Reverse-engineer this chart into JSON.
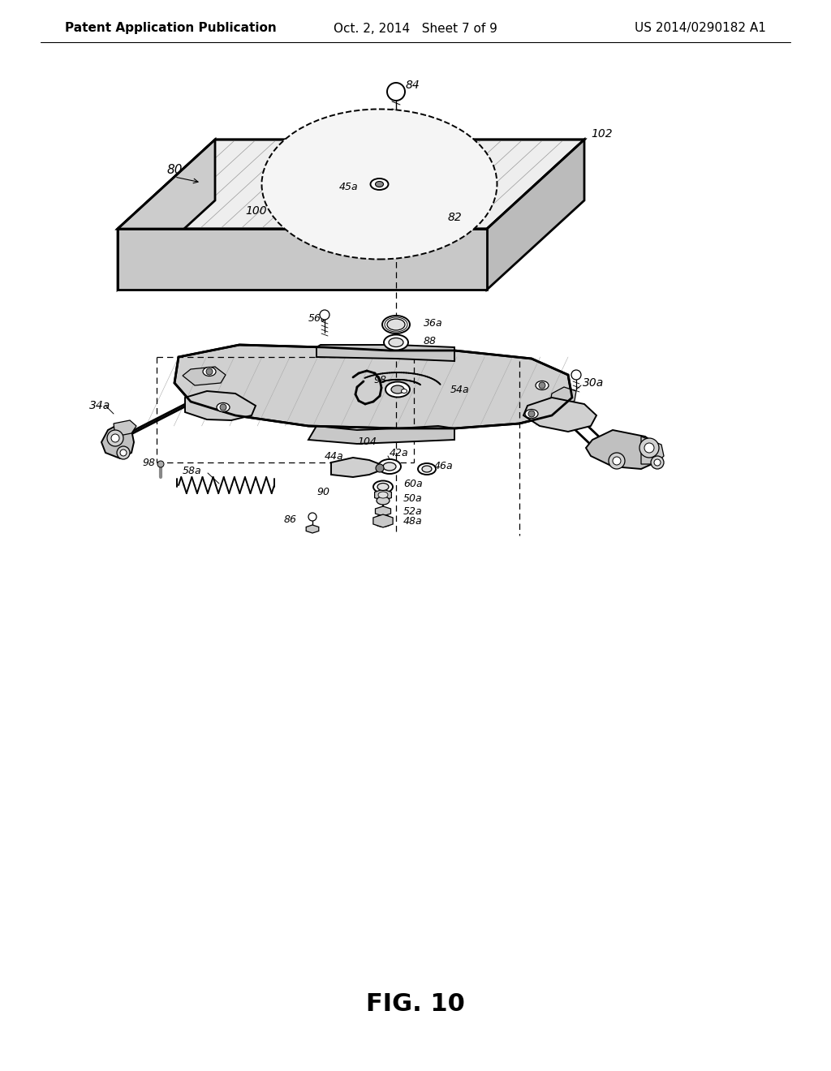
{
  "background_color": "#ffffff",
  "header_left": "Patent Application Publication",
  "header_center": "Oct. 2, 2014   Sheet 7 of 9",
  "header_right": "US 2014/0290182 A1",
  "figure_label": "FIG. 10",
  "header_fontsize": 11,
  "figure_label_fontsize": 22
}
